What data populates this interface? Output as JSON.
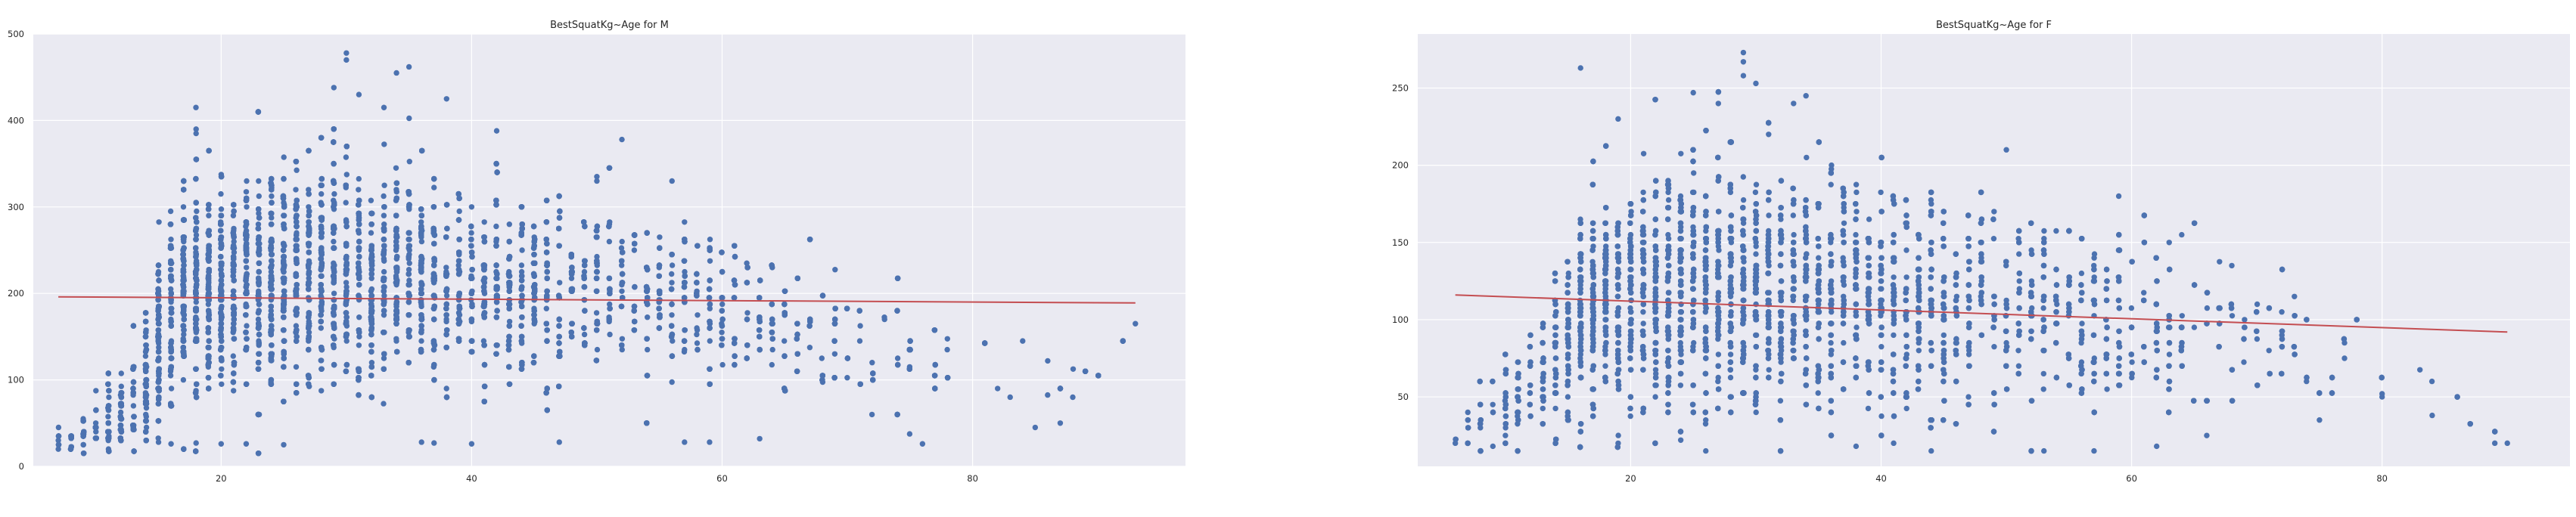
{
  "chart_data": [
    {
      "type": "scatter",
      "title": "BestSquatKg~Age for M",
      "xlabel": "",
      "ylabel": "",
      "xlim": [
        5,
        97
      ],
      "ylim": [
        0,
        500
      ],
      "xticks": [
        20,
        40,
        60,
        80
      ],
      "yticks": [
        0,
        100,
        200,
        300,
        400,
        500
      ],
      "grid": true,
      "trendline": {
        "x": [
          7,
          93
        ],
        "y": [
          196,
          189
        ]
      },
      "density_profile": {
        "age": [
          7,
          10,
          13,
          15,
          17,
          20,
          23,
          26,
          29,
          32,
          35,
          38,
          42,
          46,
          50,
          54,
          58,
          62,
          66,
          70,
          74,
          78,
          82,
          87,
          93
        ],
        "center": [
          35,
          45,
          75,
          150,
          200,
          215,
          220,
          225,
          225,
          220,
          215,
          210,
          205,
          200,
          195,
          190,
          180,
          170,
          160,
          150,
          140,
          120,
          100,
          80,
          160
        ],
        "spread": [
          12,
          18,
          35,
          55,
          60,
          60,
          60,
          60,
          60,
          58,
          55,
          52,
          50,
          48,
          46,
          45,
          42,
          40,
          38,
          38,
          35,
          32,
          30,
          25,
          10
        ],
        "density": [
          0.05,
          0.15,
          0.4,
          0.85,
          1.0,
          1.0,
          1.0,
          0.95,
          0.9,
          0.8,
          0.7,
          0.6,
          0.5,
          0.42,
          0.35,
          0.28,
          0.22,
          0.16,
          0.11,
          0.07,
          0.05,
          0.03,
          0.015,
          0.008,
          0.004
        ]
      },
      "notable_points": [
        {
          "x": 30,
          "y": 478
        },
        {
          "x": 30,
          "y": 470
        },
        {
          "x": 35,
          "y": 462
        },
        {
          "x": 34,
          "y": 455
        },
        {
          "x": 29,
          "y": 438
        },
        {
          "x": 31,
          "y": 430
        },
        {
          "x": 38,
          "y": 425
        },
        {
          "x": 33,
          "y": 415
        },
        {
          "x": 18,
          "y": 390
        },
        {
          "x": 18,
          "y": 385
        },
        {
          "x": 42,
          "y": 388
        },
        {
          "x": 52,
          "y": 378
        },
        {
          "x": 50,
          "y": 335
        },
        {
          "x": 50,
          "y": 330
        },
        {
          "x": 56,
          "y": 330
        },
        {
          "x": 93,
          "y": 165
        },
        {
          "x": 87,
          "y": 50
        },
        {
          "x": 85,
          "y": 45
        },
        {
          "x": 82,
          "y": 90
        },
        {
          "x": 83,
          "y": 80
        },
        {
          "x": 84,
          "y": 145
        },
        {
          "x": 86,
          "y": 122
        },
        {
          "x": 15,
          "y": 28
        },
        {
          "x": 16,
          "y": 26
        },
        {
          "x": 18,
          "y": 27
        },
        {
          "x": 20,
          "y": 26
        },
        {
          "x": 22,
          "y": 26
        },
        {
          "x": 36,
          "y": 28
        },
        {
          "x": 37,
          "y": 27
        },
        {
          "x": 40,
          "y": 26
        },
        {
          "x": 47,
          "y": 28
        },
        {
          "x": 57,
          "y": 28
        },
        {
          "x": 59,
          "y": 28
        },
        {
          "x": 63,
          "y": 32
        },
        {
          "x": 76,
          "y": 26
        },
        {
          "x": 7,
          "y": 20
        },
        {
          "x": 7,
          "y": 30
        },
        {
          "x": 8,
          "y": 35
        },
        {
          "x": 9,
          "y": 25
        },
        {
          "x": 10,
          "y": 40
        }
      ]
    },
    {
      "type": "scatter",
      "title": "BestSquatKg~Age for F",
      "xlabel": "",
      "ylabel": "",
      "xlim": [
        3,
        95
      ],
      "ylim": [
        5,
        285
      ],
      "xticks": [
        20,
        40,
        60,
        80
      ],
      "yticks": [
        50,
        100,
        150,
        200,
        250
      ],
      "grid": true,
      "trendline": {
        "x": [
          6,
          90
        ],
        "y": [
          116,
          92
        ]
      },
      "density_profile": {
        "age": [
          6,
          9,
          12,
          14,
          16,
          18,
          21,
          24,
          27,
          30,
          33,
          36,
          40,
          44,
          48,
          52,
          56,
          60,
          64,
          68,
          72,
          76,
          80,
          85,
          90
        ],
        "center": [
          30,
          40,
          60,
          85,
          105,
          115,
          120,
          122,
          122,
          120,
          118,
          115,
          112,
          110,
          108,
          105,
          100,
          95,
          90,
          85,
          80,
          75,
          70,
          55,
          20
        ],
        "spread": [
          8,
          12,
          20,
          30,
          35,
          38,
          38,
          38,
          38,
          37,
          36,
          35,
          34,
          33,
          32,
          31,
          30,
          28,
          27,
          26,
          24,
          22,
          20,
          15,
          2
        ],
        "density": [
          0.04,
          0.12,
          0.3,
          0.55,
          0.8,
          0.95,
          1.0,
          1.0,
          0.95,
          0.9,
          0.82,
          0.74,
          0.65,
          0.55,
          0.45,
          0.36,
          0.28,
          0.2,
          0.14,
          0.09,
          0.06,
          0.035,
          0.02,
          0.008,
          0.004
        ]
      },
      "notable_points": [
        {
          "x": 29,
          "y": 273
        },
        {
          "x": 29,
          "y": 267
        },
        {
          "x": 29,
          "y": 258
        },
        {
          "x": 30,
          "y": 253
        },
        {
          "x": 16,
          "y": 263
        },
        {
          "x": 34,
          "y": 245
        },
        {
          "x": 25,
          "y": 247
        },
        {
          "x": 27,
          "y": 240
        },
        {
          "x": 19,
          "y": 230
        },
        {
          "x": 50,
          "y": 210
        },
        {
          "x": 90,
          "y": 20
        },
        {
          "x": 89,
          "y": 20
        },
        {
          "x": 84,
          "y": 38
        },
        {
          "x": 80,
          "y": 52
        },
        {
          "x": 80,
          "y": 50
        },
        {
          "x": 77,
          "y": 85
        },
        {
          "x": 77,
          "y": 75
        },
        {
          "x": 73,
          "y": 115
        },
        {
          "x": 72,
          "y": 90
        },
        {
          "x": 75,
          "y": 35
        },
        {
          "x": 68,
          "y": 135
        },
        {
          "x": 64,
          "y": 155
        },
        {
          "x": 63,
          "y": 150
        },
        {
          "x": 6,
          "y": 20
        },
        {
          "x": 7,
          "y": 35
        },
        {
          "x": 7,
          "y": 40
        },
        {
          "x": 8,
          "y": 15
        },
        {
          "x": 9,
          "y": 18
        },
        {
          "x": 10,
          "y": 25
        },
        {
          "x": 24,
          "y": 22
        },
        {
          "x": 26,
          "y": 15
        },
        {
          "x": 38,
          "y": 18
        },
        {
          "x": 41,
          "y": 20
        },
        {
          "x": 44,
          "y": 15
        },
        {
          "x": 53,
          "y": 15
        },
        {
          "x": 57,
          "y": 15
        },
        {
          "x": 62,
          "y": 18
        },
        {
          "x": 66,
          "y": 25
        }
      ]
    }
  ]
}
